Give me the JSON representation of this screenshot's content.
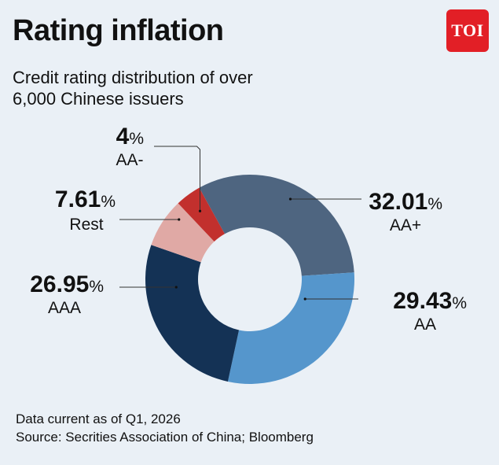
{
  "header": {
    "title": "Rating inflation",
    "subtitle_line1": "Credit rating distribution of over",
    "subtitle_line2": "6,000 Chinese issuers",
    "logo_text": "TOI"
  },
  "footer": {
    "note": "Data current as of Q1, 2026",
    "source": "Source: Secrities Association of China; Bloomberg"
  },
  "colors": {
    "background": "#eaf0f6",
    "logo": "#e21f26"
  },
  "chart_data": {
    "type": "pie",
    "style": "donut",
    "slices": [
      {
        "label": "AA+",
        "value": 32.01,
        "value_text": "32.01",
        "color": "#4e6580"
      },
      {
        "label": "AA",
        "value": 29.43,
        "value_text": "29.43",
        "color": "#5596cc"
      },
      {
        "label": "AAA",
        "value": 26.95,
        "value_text": "26.95",
        "color": "#143255"
      },
      {
        "label": "Rest",
        "value": 7.61,
        "value_text": "7.61",
        "color": "#e0a9a5"
      },
      {
        "label": "AA-",
        "value": 4,
        "value_text": "4",
        "color": "#c2302d"
      }
    ],
    "unit": "%"
  }
}
